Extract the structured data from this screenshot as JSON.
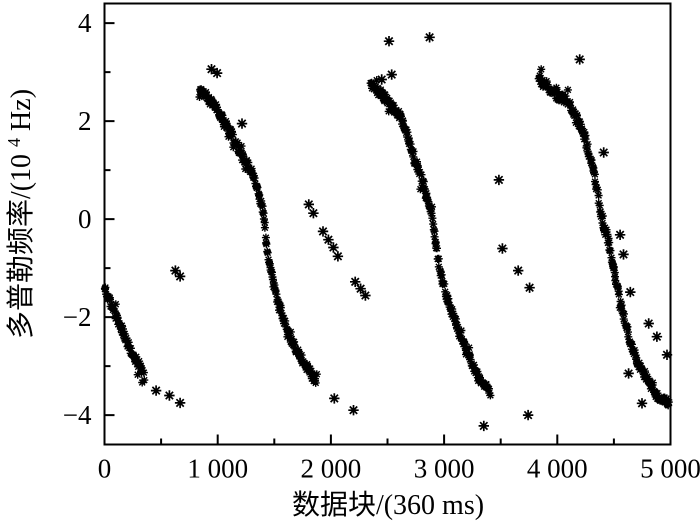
{
  "figure": {
    "background": "#ffffff",
    "ink_color": "#000000"
  },
  "chart_data": {
    "type": "scatter",
    "title": "",
    "xlabel": "数据块/(360 ms)",
    "ylabel": "多普勒频率/(10⁴ Hz)",
    "ylabel_parts": {
      "main": "多普勒频率/(10",
      "sup": "4",
      "unit": " Hz)"
    },
    "marker": "asterisk",
    "marker_color": "#000000",
    "grid": false,
    "legend": "none",
    "xlim": [
      0,
      5000
    ],
    "ylim": [
      -4.6,
      4.4
    ],
    "x_major_ticks": [
      0,
      1000,
      2000,
      3000,
      4000,
      5000
    ],
    "x_tick_labels": [
      "0",
      "1 000",
      "2 000",
      "3 000",
      "4 000",
      "5 000"
    ],
    "x_minor_ticks": [
      500,
      1500,
      2500,
      3500,
      4500
    ],
    "y_major_ticks": [
      4,
      2,
      0,
      -2,
      -4
    ],
    "y_tick_labels": [
      "4",
      "2",
      "0",
      "−2",
      "−4"
    ],
    "y_minor_ticks": [
      3,
      1,
      -1,
      -3
    ],
    "series": [
      {
        "name": "wrapped-doppler-track",
        "kind": "dense-band",
        "sample_step_x": 5,
        "jitter_x": 4,
        "jitter_y": 0.08,
        "segments": [
          {
            "backbone": [
              [
                0,
                -1.42
              ],
              [
                45,
                -1.66
              ],
              [
                100,
                -1.98
              ],
              [
                150,
                -2.25
              ],
              [
                200,
                -2.52
              ],
              [
                255,
                -2.78
              ],
              [
                310,
                -3.0
              ],
              [
                350,
                -3.17
              ]
            ]
          },
          {
            "backbone": [
              [
                838,
                2.68
              ],
              [
                900,
                2.52
              ],
              [
                960,
                2.34
              ],
              [
                1020,
                2.14
              ],
              [
                1060,
                2.0
              ],
              [
                1120,
                1.76
              ],
              [
                1180,
                1.46
              ],
              [
                1240,
                1.18
              ],
              [
                1294,
                1.0
              ],
              [
                1340,
                0.7
              ],
              [
                1378,
                0.36
              ],
              [
                1408,
                0.02
              ],
              [
                1432,
                -0.5
              ],
              [
                1462,
                -1.0
              ],
              [
                1518,
                -1.58
              ],
              [
                1575,
                -2.0
              ],
              [
                1640,
                -2.44
              ],
              [
                1700,
                -2.7
              ],
              [
                1780,
                -3.0
              ],
              [
                1840,
                -3.2
              ],
              [
                1875,
                -3.33
              ]
            ]
          },
          {
            "backbone": [
              [
                2352,
                2.78
              ],
              [
                2430,
                2.58
              ],
              [
                2510,
                2.4
              ],
              [
                2570,
                2.22
              ],
              [
                2631,
                2.0
              ],
              [
                2690,
                1.6
              ],
              [
                2740,
                1.22
              ],
              [
                2772,
                1.0
              ],
              [
                2812,
                0.74
              ],
              [
                2852,
                0.44
              ],
              [
                2882,
                0.18
              ],
              [
                2906,
                -0.12
              ],
              [
                2928,
                -0.56
              ],
              [
                2962,
                -1.0
              ],
              [
                3012,
                -1.5
              ],
              [
                3087,
                -2.0
              ],
              [
                3150,
                -2.45
              ],
              [
                3210,
                -2.75
              ],
              [
                3257,
                -3.0
              ],
              [
                3330,
                -3.3
              ],
              [
                3410,
                -3.55
              ]
            ]
          },
          {
            "backbone": [
              [
                3836,
                2.88
              ],
              [
                3900,
                2.72
              ],
              [
                3962,
                2.58
              ],
              [
                4030,
                2.48
              ],
              [
                4086,
                2.43
              ],
              [
                4132,
                2.24
              ],
              [
                4172,
                2.06
              ],
              [
                4212,
                1.85
              ],
              [
                4252,
                1.6
              ],
              [
                4287,
                1.3
              ],
              [
                4320,
                1.0
              ],
              [
                4356,
                0.52
              ],
              [
                4382,
                0.1
              ],
              [
                4412,
                -0.2
              ],
              [
                4440,
                -0.36
              ],
              [
                4470,
                -0.66
              ],
              [
                4492,
                -0.96
              ],
              [
                4530,
                -1.36
              ],
              [
                4560,
                -1.72
              ],
              [
                4590,
                -2.0
              ],
              [
                4622,
                -2.28
              ],
              [
                4660,
                -2.6
              ],
              [
                4720,
                -2.95
              ],
              [
                4780,
                -3.22
              ],
              [
                4850,
                -3.5
              ],
              [
                4925,
                -3.68
              ],
              [
                4988,
                -3.77
              ]
            ]
          }
        ]
      },
      {
        "name": "stray-points",
        "kind": "points",
        "points": [
          [
            456,
            -3.5
          ],
          [
            573,
            -3.6
          ],
          [
            668,
            -3.75
          ],
          [
            626,
            -1.05
          ],
          [
            668,
            -1.17
          ],
          [
            945,
            3.06
          ],
          [
            995,
            2.98
          ],
          [
            1215,
            1.95
          ],
          [
            1805,
            0.3
          ],
          [
            1845,
            0.12
          ],
          [
            1930,
            -0.25
          ],
          [
            1978,
            -0.42
          ],
          [
            2022,
            -0.58
          ],
          [
            2062,
            -0.76
          ],
          [
            2215,
            -1.28
          ],
          [
            2262,
            -1.42
          ],
          [
            2305,
            -1.56
          ],
          [
            2030,
            -3.66
          ],
          [
            2200,
            -3.9
          ],
          [
            2449,
            2.85
          ],
          [
            2537,
            2.95
          ],
          [
            2513,
            3.63
          ],
          [
            2872,
            3.71
          ],
          [
            3484,
            0.8
          ],
          [
            3515,
            -0.6
          ],
          [
            3655,
            -1.05
          ],
          [
            3755,
            -1.4
          ],
          [
            3351,
            -4.22
          ],
          [
            3742,
            -4.0
          ],
          [
            4198,
            3.26
          ],
          [
            4410,
            1.36
          ],
          [
            4555,
            -0.32
          ],
          [
            4585,
            -0.72
          ],
          [
            4645,
            -1.49
          ],
          [
            4807,
            -2.13
          ],
          [
            4880,
            -2.4
          ],
          [
            4969,
            -2.77
          ],
          [
            4630,
            -3.15
          ],
          [
            4748,
            -3.76
          ]
        ]
      }
    ]
  }
}
